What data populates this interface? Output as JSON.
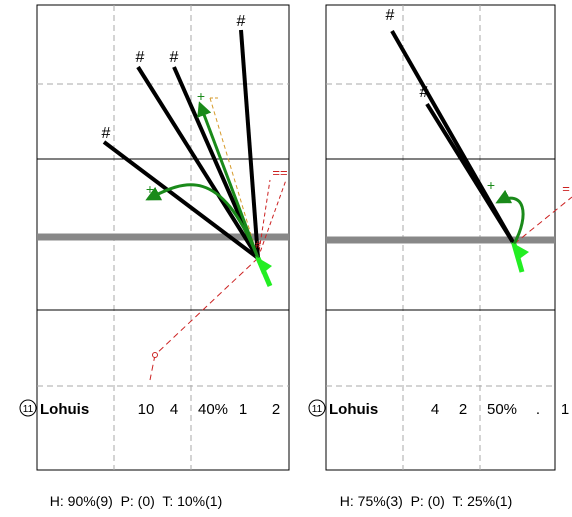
{
  "chart_data": [
    {
      "type": "other",
      "player": {
        "number": "11",
        "name": "Lohuis"
      },
      "stats": [
        "10",
        "4",
        "40%",
        "1",
        "2"
      ],
      "summary": "H: 90%(9)  P: (0)  T: 10%(1)",
      "marker_labels": [
        "#",
        "#",
        "#",
        "#",
        "#",
        "+",
        "+",
        "=="
      ]
    },
    {
      "type": "other",
      "player": {
        "number": "11",
        "name": "Lohuis"
      },
      "stats": [
        "4",
        "2",
        "50%",
        ".",
        "1"
      ],
      "summary": "H: 75%(3)  P: (0)  T: 25%(1)",
      "marker_labels": [
        "#",
        "#",
        "+",
        "="
      ]
    }
  ],
  "colors": {
    "black": "#000000",
    "green": "#1a8a1a",
    "bright_green": "#22ee22",
    "red": "#cc2222",
    "orange": "#d69a2a",
    "gray_line": "#888888",
    "grid": "#aaaaaa"
  }
}
